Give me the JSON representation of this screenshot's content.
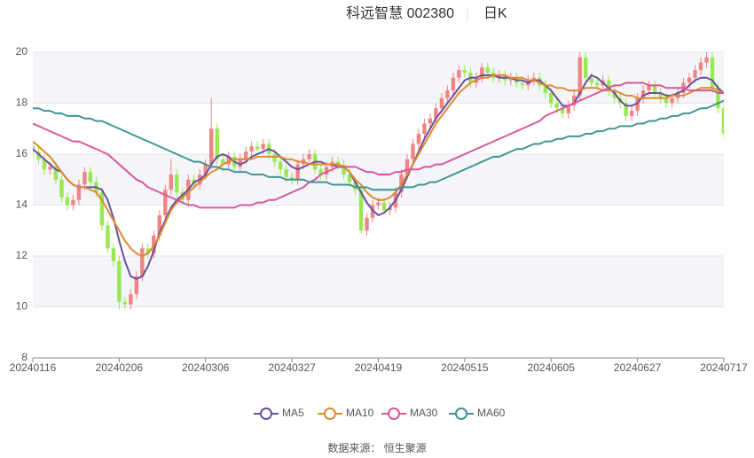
{
  "chart_data": {
    "type": "candlestick",
    "title": "科远智慧 002380",
    "subtitle": "日K",
    "source": "数据来源： 恒生聚源",
    "up_color": "#f08484",
    "down_color": "#98e850",
    "grid": true,
    "ylim": [
      8,
      20
    ],
    "yticks": [
      8,
      10,
      12,
      14,
      16,
      18,
      20
    ],
    "categories": [
      "20240116",
      null,
      null,
      null,
      null,
      null,
      null,
      null,
      null,
      null,
      null,
      null,
      null,
      null,
      null,
      "20240206",
      null,
      null,
      null,
      null,
      null,
      null,
      null,
      null,
      null,
      null,
      null,
      null,
      null,
      null,
      "20240306",
      null,
      null,
      null,
      null,
      null,
      null,
      null,
      null,
      null,
      null,
      null,
      null,
      null,
      null,
      "20240327",
      null,
      null,
      null,
      null,
      null,
      null,
      null,
      null,
      null,
      null,
      null,
      null,
      null,
      null,
      "20240419",
      null,
      null,
      null,
      null,
      null,
      null,
      null,
      null,
      null,
      null,
      null,
      null,
      null,
      null,
      "20240515",
      null,
      null,
      null,
      null,
      null,
      null,
      null,
      null,
      null,
      null,
      null,
      null,
      null,
      null,
      "20240605",
      null,
      null,
      null,
      null,
      null,
      null,
      null,
      null,
      null,
      null,
      null,
      null,
      null,
      null,
      "20240627",
      null,
      null,
      null,
      null,
      null,
      null,
      null,
      null,
      null,
      null,
      null,
      null,
      null,
      null,
      "20240717"
    ],
    "open": [
      16.3,
      16.1,
      15.8,
      15.4,
      15.5,
      15.0,
      14.3,
      14.0,
      14.2,
      14.8,
      15.3,
      14.9,
      14.5,
      13.2,
      12.3,
      11.8,
      10.2,
      10.1,
      10.5,
      11.2,
      12.3,
      12.1,
      12.8,
      13.6,
      14.6,
      15.2,
      14.5,
      14.2,
      15.0,
      14.8,
      15.2,
      15.6,
      17.0,
      15.8,
      15.6,
      15.9,
      15.5,
      15.8,
      16.1,
      16.3,
      16.2,
      16.4,
      16.0,
      15.7,
      15.4,
      15.1,
      15.0,
      15.6,
      15.8,
      16.0,
      15.4,
      15.2,
      15.5,
      15.7,
      15.6,
      15.2,
      14.9,
      14.6,
      13.0,
      13.5,
      14.0,
      14.1,
      13.8,
      13.9,
      14.5,
      15.2,
      15.8,
      16.4,
      16.8,
      17.2,
      17.4,
      17.8,
      18.2,
      18.5,
      19.0,
      19.3,
      19.2,
      18.8,
      19.0,
      19.4,
      19.2,
      19.0,
      19.1,
      18.9,
      19.0,
      18.8,
      18.7,
      18.9,
      19.0,
      18.7,
      18.4,
      18.0,
      17.8,
      17.6,
      17.9,
      18.3,
      19.8,
      19.0,
      18.8,
      18.7,
      18.9,
      18.5,
      18.2,
      18.0,
      17.5,
      17.7,
      18.2,
      18.5,
      18.7,
      18.4,
      18.2,
      18.0,
      18.2,
      18.4,
      18.8,
      19.0,
      19.3,
      19.6,
      19.8,
      18.6,
      17.8
    ],
    "close": [
      16.1,
      15.8,
      15.4,
      15.5,
      15.0,
      14.3,
      14.0,
      14.2,
      14.8,
      15.3,
      14.9,
      14.5,
      13.2,
      12.3,
      11.8,
      10.2,
      10.1,
      10.5,
      11.2,
      12.3,
      12.1,
      12.8,
      13.6,
      14.6,
      15.2,
      14.5,
      14.2,
      15.0,
      14.8,
      15.2,
      15.6,
      17.0,
      15.8,
      15.6,
      15.9,
      15.5,
      15.8,
      16.1,
      16.3,
      16.2,
      16.4,
      16.0,
      15.7,
      15.4,
      15.1,
      15.0,
      15.6,
      15.8,
      16.0,
      15.4,
      15.2,
      15.5,
      15.7,
      15.6,
      15.2,
      14.9,
      14.6,
      13.0,
      13.5,
      14.0,
      14.1,
      13.8,
      13.9,
      14.5,
      15.2,
      15.8,
      16.4,
      16.8,
      17.2,
      17.4,
      17.8,
      18.2,
      18.5,
      19.0,
      19.3,
      19.2,
      18.8,
      19.0,
      19.4,
      19.2,
      19.0,
      19.1,
      18.9,
      19.0,
      18.8,
      18.7,
      18.9,
      19.0,
      18.7,
      18.4,
      18.0,
      17.8,
      17.6,
      17.9,
      18.3,
      19.8,
      19.0,
      18.8,
      18.7,
      18.9,
      18.5,
      18.2,
      18.0,
      17.5,
      17.7,
      18.2,
      18.5,
      18.7,
      18.4,
      18.2,
      18.0,
      18.2,
      18.4,
      18.8,
      19.0,
      19.3,
      19.6,
      19.8,
      18.6,
      17.8,
      16.8
    ],
    "high": [
      16.5,
      16.3,
      16.0,
      15.7,
      15.7,
      15.2,
      14.5,
      14.4,
      15.0,
      15.5,
      15.5,
      15.1,
      14.7,
      13.4,
      12.5,
      12.0,
      10.4,
      10.7,
      11.4,
      12.5,
      12.5,
      13.0,
      13.8,
      14.8,
      15.8,
      15.4,
      14.7,
      15.2,
      15.2,
      15.4,
      15.8,
      18.2,
      17.2,
      16.0,
      16.1,
      16.1,
      16.0,
      16.3,
      16.5,
      16.5,
      16.6,
      16.6,
      16.2,
      15.9,
      15.6,
      15.3,
      15.8,
      16.0,
      16.2,
      16.2,
      15.6,
      15.7,
      15.9,
      15.9,
      15.8,
      15.4,
      15.1,
      14.8,
      13.7,
      14.2,
      14.3,
      14.3,
      14.1,
      14.7,
      15.4,
      16.0,
      16.6,
      17.0,
      17.4,
      17.6,
      18.0,
      18.4,
      18.7,
      19.2,
      19.5,
      19.5,
      19.4,
      19.2,
      19.6,
      19.6,
      19.4,
      19.3,
      19.3,
      19.2,
      19.2,
      19.0,
      19.1,
      19.2,
      19.2,
      18.9,
      18.6,
      18.2,
      18.0,
      18.1,
      18.5,
      20.0,
      20.0,
      19.2,
      19.0,
      19.1,
      19.1,
      18.7,
      18.4,
      18.2,
      17.9,
      18.4,
      18.7,
      18.9,
      18.9,
      18.6,
      18.4,
      18.4,
      18.6,
      19.0,
      19.2,
      19.5,
      19.8,
      20.0,
      20.0,
      18.8,
      18.0
    ],
    "low": [
      15.9,
      15.6,
      15.2,
      15.2,
      14.8,
      14.1,
      13.8,
      13.8,
      14.0,
      14.6,
      14.7,
      14.3,
      13.0,
      12.1,
      11.6,
      9.9,
      9.9,
      9.9,
      10.3,
      11.0,
      11.9,
      11.9,
      12.6,
      13.4,
      14.4,
      14.3,
      14.0,
      14.0,
      14.6,
      14.6,
      15.0,
      15.4,
      15.6,
      15.4,
      15.4,
      15.3,
      15.3,
      15.6,
      15.9,
      16.0,
      16.0,
      15.8,
      15.5,
      15.2,
      14.9,
      14.8,
      14.8,
      15.4,
      15.6,
      15.2,
      15.0,
      15.0,
      15.3,
      15.4,
      15.0,
      14.7,
      14.4,
      12.9,
      12.8,
      13.3,
      13.8,
      13.6,
      13.6,
      13.7,
      14.3,
      15.0,
      15.6,
      16.2,
      16.6,
      17.0,
      17.2,
      17.6,
      18.0,
      18.3,
      18.8,
      19.0,
      18.6,
      18.6,
      18.8,
      19.0,
      18.8,
      18.8,
      18.7,
      18.7,
      18.6,
      18.5,
      18.5,
      18.7,
      18.5,
      18.2,
      17.8,
      17.6,
      17.4,
      17.4,
      17.7,
      18.1,
      18.8,
      18.6,
      18.5,
      18.5,
      18.3,
      18.0,
      17.8,
      17.3,
      17.3,
      17.5,
      18.0,
      18.3,
      18.2,
      18.0,
      17.8,
      17.8,
      18.0,
      18.2,
      18.6,
      18.8,
      19.1,
      19.4,
      18.4,
      17.6,
      16.6
    ],
    "series": [
      {
        "name": "MA5",
        "color": "#6b4f9e",
        "values": [
          16.2,
          16.0,
          15.8,
          15.6,
          15.4,
          15.3,
          15.0,
          14.8,
          14.7,
          14.7,
          14.7,
          14.7,
          14.6,
          14.2,
          13.5,
          12.6,
          11.8,
          11.2,
          11.1,
          11.2,
          11.6,
          12.2,
          12.9,
          13.4,
          13.9,
          14.2,
          14.4,
          14.6,
          14.9,
          15.0,
          15.2,
          15.6,
          15.9,
          16.0,
          15.9,
          15.7,
          15.6,
          15.7,
          15.9,
          16.0,
          16.1,
          16.2,
          16.1,
          15.9,
          15.7,
          15.5,
          15.4,
          15.5,
          15.6,
          15.7,
          15.7,
          15.6,
          15.6,
          15.5,
          15.5,
          15.3,
          14.9,
          14.5,
          14.1,
          13.8,
          13.6,
          13.7,
          13.9,
          14.2,
          14.6,
          15.1,
          15.6,
          16.1,
          16.6,
          17.0,
          17.4,
          17.7,
          18.0,
          18.3,
          18.6,
          18.9,
          19.0,
          19.0,
          19.1,
          19.1,
          19.1,
          19.0,
          19.0,
          19.0,
          18.9,
          18.9,
          18.8,
          18.9,
          18.9,
          18.7,
          18.5,
          18.2,
          17.9,
          17.9,
          18.0,
          18.4,
          18.8,
          19.1,
          19.0,
          18.8,
          18.6,
          18.4,
          18.1,
          17.9,
          17.9,
          18.0,
          18.3,
          18.4,
          18.4,
          18.4,
          18.3,
          18.3,
          18.4,
          18.5,
          18.7,
          18.9,
          19.0,
          19.0,
          18.9,
          18.6,
          18.4
        ]
      },
      {
        "name": "MA10",
        "color": "#e08a2e",
        "values": [
          16.5,
          16.3,
          16.1,
          15.9,
          15.6,
          15.3,
          15.0,
          14.8,
          14.7,
          14.7,
          14.6,
          14.5,
          14.2,
          13.8,
          13.4,
          13.0,
          12.6,
          12.3,
          12.1,
          12.0,
          12.1,
          12.4,
          12.8,
          13.3,
          13.8,
          14.1,
          14.3,
          14.5,
          14.7,
          14.9,
          15.1,
          15.3,
          15.4,
          15.6,
          15.7,
          15.8,
          15.8,
          15.8,
          15.8,
          15.9,
          15.9,
          15.9,
          15.9,
          15.9,
          15.8,
          15.8,
          15.7,
          15.7,
          15.6,
          15.6,
          15.6,
          15.6,
          15.6,
          15.6,
          15.5,
          15.3,
          15.0,
          14.8,
          14.5,
          14.3,
          14.2,
          14.2,
          14.3,
          14.5,
          14.8,
          15.2,
          15.6,
          16.0,
          16.4,
          16.8,
          17.2,
          17.5,
          17.8,
          18.1,
          18.4,
          18.6,
          18.8,
          18.9,
          19.0,
          19.0,
          19.1,
          19.1,
          19.1,
          19.0,
          19.0,
          19.0,
          18.9,
          18.9,
          18.8,
          18.7,
          18.7,
          18.6,
          18.6,
          18.5,
          18.5,
          18.5,
          18.6,
          18.6,
          18.6,
          18.5,
          18.5,
          18.5,
          18.4,
          18.3,
          18.3,
          18.2,
          18.2,
          18.2,
          18.2,
          18.2,
          18.2,
          18.3,
          18.3,
          18.3,
          18.4,
          18.5,
          18.6,
          18.6,
          18.6,
          18.5,
          18.4
        ]
      },
      {
        "name": "MA30",
        "color": "#d9559a",
        "values": [
          17.2,
          17.1,
          17.0,
          16.9,
          16.8,
          16.7,
          16.6,
          16.5,
          16.5,
          16.4,
          16.3,
          16.2,
          16.1,
          16.0,
          15.8,
          15.6,
          15.4,
          15.2,
          15.0,
          14.9,
          14.7,
          14.6,
          14.5,
          14.4,
          14.3,
          14.2,
          14.1,
          14.0,
          14.0,
          13.9,
          13.9,
          13.9,
          13.9,
          13.9,
          13.9,
          13.9,
          14.0,
          14.0,
          14.0,
          14.1,
          14.1,
          14.2,
          14.2,
          14.3,
          14.4,
          14.5,
          14.6,
          14.7,
          14.9,
          15.0,
          15.2,
          15.3,
          15.4,
          15.5,
          15.5,
          15.5,
          15.5,
          15.4,
          15.3,
          15.3,
          15.2,
          15.2,
          15.2,
          15.3,
          15.3,
          15.4,
          15.4,
          15.4,
          15.5,
          15.5,
          15.6,
          15.6,
          15.7,
          15.8,
          15.9,
          16.0,
          16.1,
          16.2,
          16.3,
          16.4,
          16.5,
          16.6,
          16.7,
          16.8,
          16.9,
          17.0,
          17.1,
          17.2,
          17.3,
          17.5,
          17.6,
          17.7,
          17.8,
          17.9,
          18.0,
          18.1,
          18.2,
          18.3,
          18.4,
          18.5,
          18.6,
          18.7,
          18.7,
          18.8,
          18.8,
          18.8,
          18.8,
          18.7,
          18.7,
          18.7,
          18.6,
          18.6,
          18.6,
          18.6,
          18.5,
          18.5,
          18.5,
          18.5,
          18.5,
          18.4,
          18.4
        ]
      },
      {
        "name": "MA60",
        "color": "#3f9496",
        "values": [
          17.8,
          17.8,
          17.7,
          17.7,
          17.6,
          17.6,
          17.5,
          17.5,
          17.5,
          17.4,
          17.4,
          17.3,
          17.3,
          17.2,
          17.1,
          17.0,
          16.9,
          16.8,
          16.7,
          16.6,
          16.5,
          16.4,
          16.3,
          16.2,
          16.1,
          16.0,
          15.9,
          15.8,
          15.7,
          15.7,
          15.6,
          15.5,
          15.5,
          15.4,
          15.4,
          15.3,
          15.3,
          15.3,
          15.2,
          15.2,
          15.2,
          15.1,
          15.1,
          15.1,
          15.0,
          15.0,
          15.0,
          15.0,
          14.9,
          14.9,
          14.9,
          14.9,
          14.8,
          14.8,
          14.8,
          14.8,
          14.7,
          14.7,
          14.7,
          14.6,
          14.6,
          14.6,
          14.6,
          14.6,
          14.7,
          14.7,
          14.7,
          14.8,
          14.8,
          14.9,
          14.9,
          15.0,
          15.1,
          15.2,
          15.3,
          15.4,
          15.5,
          15.6,
          15.7,
          15.8,
          15.9,
          15.9,
          16.0,
          16.1,
          16.2,
          16.2,
          16.3,
          16.4,
          16.4,
          16.5,
          16.5,
          16.6,
          16.6,
          16.7,
          16.7,
          16.7,
          16.8,
          16.8,
          16.9,
          16.9,
          17.0,
          17.0,
          17.1,
          17.1,
          17.1,
          17.2,
          17.2,
          17.3,
          17.3,
          17.4,
          17.4,
          17.5,
          17.5,
          17.6,
          17.6,
          17.7,
          17.8,
          17.8,
          17.9,
          18.0,
          18.1
        ]
      }
    ]
  }
}
